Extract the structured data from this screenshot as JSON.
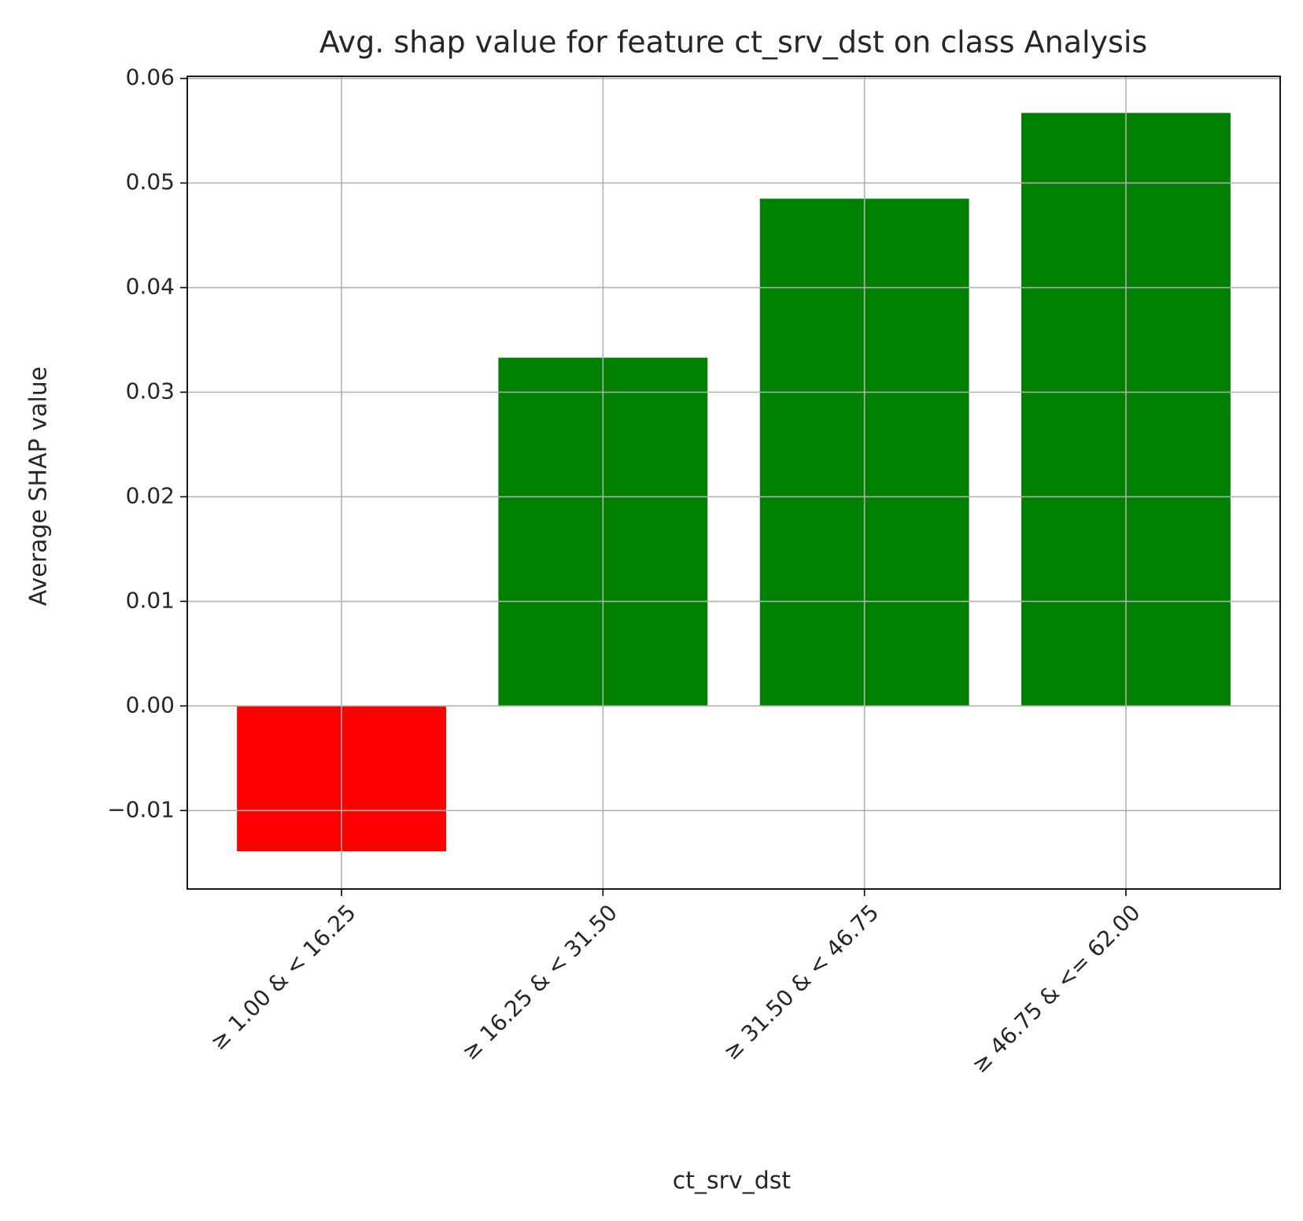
{
  "chart_data": {
    "type": "bar",
    "title": "Avg. shap value for feature ct_srv_dst on class Analysis",
    "x_label": "ct_srv_dst",
    "y_label": "Average SHAP value",
    "categories": [
      "≥ 1.00 & < 16.25",
      "≥ 16.25 & < 31.50",
      "≥ 31.50 & < 46.75",
      "≥ 46.75 & <= 62.00"
    ],
    "values": [
      -0.0139,
      0.0333,
      0.0485,
      0.0567
    ],
    "colors": [
      "#ff0000",
      "#008000",
      "#008000",
      "#008000"
    ],
    "ylim": [
      -0.0175,
      0.0602
    ],
    "yticks": [
      {
        "value": -0.01,
        "label": "−0.01"
      },
      {
        "value": 0,
        "label": "0.00"
      },
      {
        "value": 0.01,
        "label": "0.01"
      },
      {
        "value": 0.02,
        "label": "0.02"
      },
      {
        "value": 0.03,
        "label": "0.03"
      },
      {
        "value": 0.04,
        "label": "0.04"
      },
      {
        "value": 0.05,
        "label": "0.05"
      },
      {
        "value": 0.06,
        "label": "0.06"
      }
    ],
    "grid": true
  }
}
